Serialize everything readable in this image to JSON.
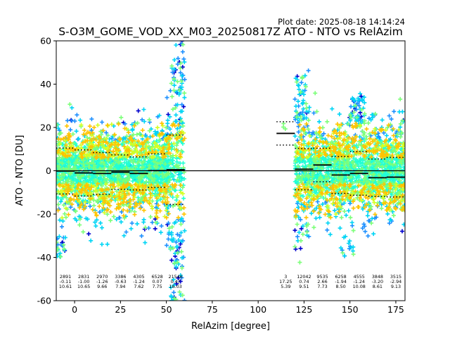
{
  "chart_data": {
    "type": "scatter",
    "title": "S-O3M_GOME_VOD_XX_M03_20250817Z ATO - NTO vs RelAzim",
    "subtitle": "Plot date: 2025-08-18 14:14:24",
    "xlabel": "RelAzim [degree]",
    "ylabel": "ATO - NTO [DU]",
    "xlim": [
      -10,
      180
    ],
    "ylim": [
      -60,
      60
    ],
    "x_ticks": [
      0,
      25,
      50,
      75,
      100,
      125,
      150,
      175
    ],
    "y_ticks": [
      -60,
      -40,
      -20,
      0,
      20,
      40,
      60
    ],
    "grid": false,
    "marker": "plus",
    "colors": [
      "#0000cd",
      "#1e90ff",
      "#00d5f5",
      "#23ffd4",
      "#7cff79",
      "#d4ff23",
      "#ffc400"
    ],
    "bins": [
      {
        "x": -5,
        "count": "2891",
        "mean": "-0.11",
        "std": "10.61"
      },
      {
        "x": 5,
        "count": "2831",
        "mean": "-1.00",
        "std": "10.65"
      },
      {
        "x": 15,
        "count": "2970",
        "mean": "-1.26",
        "std": "9.66"
      },
      {
        "x": 25,
        "count": "3386",
        "mean": "-0.63",
        "std": "7.94"
      },
      {
        "x": 35,
        "count": "4305",
        "mean": "-1.24",
        "std": "7.62"
      },
      {
        "x": 45,
        "count": "6528",
        "mean": "0.07",
        "std": "7.75"
      },
      {
        "x": 55,
        "count": "21546",
        "mean": "0.47",
        "std": "16.03"
      },
      {
        "x": 115,
        "count": "3",
        "mean": "17.25",
        "std": "5.39"
      },
      {
        "x": 125,
        "count": "12042",
        "mean": "0.74",
        "std": "9.51"
      },
      {
        "x": 135,
        "count": "9535",
        "mean": "2.66",
        "std": "7.73"
      },
      {
        "x": 145,
        "count": "6258",
        "mean": "-1.94",
        "std": "8.50"
      },
      {
        "x": 155,
        "count": "4555",
        "mean": "-1.24",
        "std": "10.08"
      },
      {
        "x": 165,
        "count": "3848",
        "mean": "-3.20",
        "std": "8.61"
      },
      {
        "x": 175,
        "count": "3515",
        "mean": "-2.94",
        "std": "9.13"
      }
    ],
    "segments": [
      {
        "x_range": [
          -10,
          60
        ],
        "y_low": -40,
        "y_high": 30
      },
      {
        "x_range": [
          120,
          180
        ],
        "y_low": -30,
        "y_high": 25
      }
    ],
    "zero_line": true
  }
}
